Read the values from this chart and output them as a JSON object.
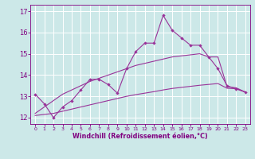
{
  "x": [
    0,
    1,
    2,
    3,
    4,
    5,
    6,
    7,
    8,
    9,
    10,
    11,
    12,
    13,
    14,
    15,
    16,
    17,
    18,
    19,
    20,
    21,
    22,
    23
  ],
  "line_jagged": [
    13.1,
    12.65,
    12.0,
    12.5,
    12.8,
    13.3,
    13.8,
    13.8,
    13.55,
    13.15,
    14.3,
    15.1,
    15.5,
    15.5,
    16.8,
    16.1,
    15.75,
    15.4,
    15.4,
    14.85,
    14.3,
    13.5,
    13.35,
    13.2
  ],
  "line_upper": [
    12.2,
    12.5,
    12.8,
    13.1,
    13.3,
    13.5,
    13.7,
    13.85,
    14.0,
    14.15,
    14.3,
    14.45,
    14.55,
    14.65,
    14.75,
    14.85,
    14.9,
    14.95,
    15.0,
    14.85,
    14.85,
    13.45,
    13.4,
    13.2
  ],
  "line_lower": [
    12.1,
    12.15,
    12.2,
    12.3,
    12.4,
    12.5,
    12.6,
    12.7,
    12.8,
    12.9,
    13.0,
    13.08,
    13.15,
    13.22,
    13.3,
    13.37,
    13.42,
    13.47,
    13.52,
    13.56,
    13.6,
    13.38,
    13.36,
    13.2
  ],
  "line_color": "#993399",
  "bg_color": "#cce8e8",
  "grid_color": "#b0d8d8",
  "xlabel": "Windchill (Refroidissement éolien,°C)",
  "xlabel_color": "#800080",
  "tick_color": "#800080",
  "ylim_min": 11.7,
  "ylim_max": 17.3,
  "xlim_min": -0.5,
  "xlim_max": 23.5,
  "yticks": [
    12,
    13,
    14,
    15,
    16,
    17
  ],
  "xticks": [
    0,
    1,
    2,
    3,
    4,
    5,
    6,
    7,
    8,
    9,
    10,
    11,
    12,
    13,
    14,
    15,
    16,
    17,
    18,
    19,
    20,
    21,
    22,
    23
  ]
}
